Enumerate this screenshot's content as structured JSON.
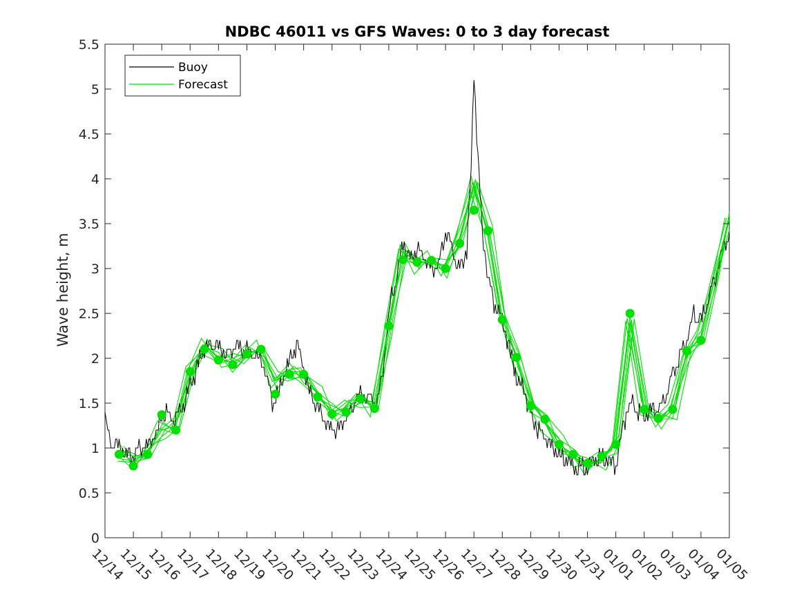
{
  "chart_data": {
    "type": "line",
    "title": "NDBC 46011 vs GFS Waves: 0 to 3 day forecast",
    "xlabel": "",
    "ylabel": "Wave height, m",
    "x_units": "days since 12/14",
    "xlim": [
      0,
      22
    ],
    "ylim": [
      0,
      5.5
    ],
    "grid": false,
    "legend_position": "top-left",
    "x_tick_values": [
      0,
      1,
      2,
      3,
      4,
      5,
      6,
      7,
      8,
      9,
      10,
      11,
      12,
      13,
      14,
      15,
      16,
      17,
      18,
      19,
      20,
      21,
      22
    ],
    "x_tick_labels": [
      "12/14",
      "12/15",
      "12/16",
      "12/17",
      "12/18",
      "12/19",
      "12/20",
      "12/21",
      "12/22",
      "12/23",
      "12/24",
      "12/25",
      "12/26",
      "12/27",
      "12/28",
      "12/29",
      "12/30",
      "12/31",
      "01/01",
      "01/02",
      "01/03",
      "01/04",
      "01/05"
    ],
    "y_tick_values": [
      0,
      0.5,
      1,
      1.5,
      2,
      2.5,
      3,
      3.5,
      4,
      4.5,
      5,
      5.5
    ],
    "y_tick_labels": [
      "0",
      "0.5",
      "1",
      "1.5",
      "2",
      "2.5",
      "3",
      "3.5",
      "4",
      "4.5",
      "5",
      "5.5"
    ],
    "colors": {
      "buoy": "#000000",
      "forecast": "#00e000",
      "marker": "#00e000",
      "axis": "#262626"
    },
    "series": [
      {
        "name": "Buoy",
        "x": [
          0,
          0.1,
          0.25,
          0.5,
          0.7,
          1,
          1.2,
          1.5,
          1.8,
          2,
          2.2,
          2.5,
          2.8,
          3,
          3.25,
          3.5,
          3.8,
          4,
          4.3,
          4.6,
          5,
          5.3,
          5.6,
          5.9,
          6.1,
          6.3,
          6.5,
          6.75,
          7,
          7.2,
          7.5,
          7.75,
          8,
          8.25,
          8.5,
          8.75,
          9,
          9.3,
          9.6,
          9.8,
          10,
          10.1,
          10.3,
          10.5,
          10.75,
          11,
          11.25,
          11.5,
          11.75,
          12,
          12.25,
          12.5,
          12.75,
          12.9,
          13,
          13.1,
          13.3,
          13.5,
          13.75,
          14,
          14.25,
          14.5,
          14.75,
          15,
          15.25,
          15.5,
          15.75,
          16,
          16.25,
          16.5,
          16.75,
          17,
          17.25,
          17.5,
          17.75,
          18,
          18.1,
          18.25,
          18.4,
          18.55,
          18.75,
          19,
          19.25,
          19.5,
          19.75,
          20,
          20.25,
          20.5,
          20.75,
          21,
          21.25,
          21.5,
          21.75,
          22
        ],
        "y": [
          1.35,
          1.2,
          1.05,
          1.0,
          0.95,
          0.9,
          1.0,
          1.05,
          1.15,
          1.35,
          1.4,
          1.3,
          1.5,
          1.7,
          1.9,
          2.1,
          2.15,
          2.1,
          2.05,
          2.15,
          2.1,
          2.05,
          1.9,
          1.5,
          1.6,
          1.8,
          1.95,
          2.15,
          1.9,
          1.65,
          1.45,
          1.3,
          1.2,
          1.25,
          1.35,
          1.5,
          1.6,
          1.55,
          1.5,
          1.9,
          2.45,
          2.7,
          2.9,
          3.3,
          3.1,
          3.2,
          3.15,
          3.0,
          3.05,
          3.4,
          3.2,
          3.0,
          3.2,
          4.1,
          5.2,
          4.5,
          3.4,
          2.9,
          2.55,
          2.45,
          2.1,
          1.8,
          1.65,
          1.4,
          1.2,
          1.1,
          1.0,
          0.9,
          0.85,
          0.8,
          0.78,
          0.75,
          0.85,
          0.9,
          0.85,
          0.8,
          1.0,
          1.25,
          1.4,
          1.5,
          1.4,
          1.35,
          1.4,
          1.45,
          1.6,
          1.8,
          2.0,
          2.2,
          2.5,
          2.4,
          2.65,
          2.9,
          3.2,
          3.4
        ]
      },
      {
        "name": "Forecast",
        "x": [
          0.5,
          1,
          1.5,
          2,
          2.5,
          3,
          3.5,
          4,
          4.5,
          5,
          5.5,
          6,
          6.5,
          7,
          7.5,
          8,
          8.5,
          9,
          9.5,
          10,
          10.5,
          11,
          11.5,
          12,
          12.5,
          13,
          13.5,
          14,
          14.5,
          15,
          15.5,
          16,
          16.5,
          17,
          17.5,
          18,
          18.5,
          19,
          19.5,
          20,
          20.5,
          21,
          21.5,
          22
        ],
        "y": [
          0.95,
          0.85,
          0.95,
          1.2,
          1.25,
          1.85,
          2.15,
          2.0,
          1.95,
          2.05,
          2.1,
          1.75,
          1.85,
          1.8,
          1.6,
          1.4,
          1.45,
          1.55,
          1.45,
          2.35,
          3.2,
          3.05,
          3.1,
          3.0,
          3.35,
          3.95,
          3.4,
          2.45,
          2.0,
          1.5,
          1.3,
          1.05,
          0.9,
          0.82,
          0.86,
          1.05,
          2.4,
          1.45,
          1.3,
          1.42,
          2.05,
          2.25,
          2.9,
          3.55
        ]
      }
    ],
    "markers": {
      "name": "Forecast verification points",
      "x": [
        0.5,
        1,
        1.5,
        2,
        2.5,
        3,
        3.5,
        4,
        4.5,
        5,
        5.5,
        6,
        6.5,
        7,
        7.5,
        8,
        8.5,
        9,
        9.5,
        10,
        10.5,
        11,
        11.5,
        12,
        12.5,
        13,
        13.5,
        14,
        14.5,
        15,
        15.5,
        16,
        16.5,
        17,
        17.5,
        18,
        18.5,
        19,
        19.5,
        20,
        20.5,
        21
      ],
      "y": [
        0.93,
        0.8,
        0.93,
        1.37,
        1.2,
        1.85,
        2.1,
        1.98,
        1.93,
        2.05,
        2.1,
        1.6,
        1.82,
        1.82,
        1.57,
        1.38,
        1.4,
        1.55,
        1.44,
        2.36,
        3.1,
        3.07,
        3.09,
        3.0,
        3.28,
        3.65,
        3.42,
        2.43,
        2.01,
        1.47,
        1.32,
        1.04,
        0.93,
        0.83,
        0.91,
        1.04,
        2.5,
        1.43,
        1.33,
        1.43,
        2.08,
        2.2
      ]
    }
  }
}
